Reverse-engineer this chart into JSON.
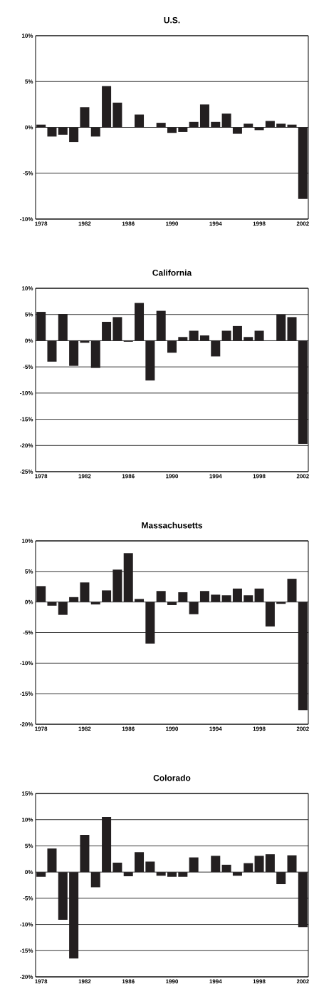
{
  "chart_data": [
    {
      "type": "bar",
      "title": "U.S.",
      "categories": [
        "1978",
        null,
        null,
        null,
        "1982",
        null,
        null,
        null,
        "1986",
        null,
        null,
        null,
        "1990",
        null,
        null,
        null,
        "1994",
        null,
        null,
        null,
        "1998",
        null,
        null,
        null,
        "2002"
      ],
      "values": [
        0.3,
        -1.0,
        -0.8,
        -1.6,
        2.2,
        -1.0,
        4.5,
        2.7,
        0.0,
        1.4,
        0.0,
        0.5,
        -0.6,
        -0.5,
        0.6,
        2.5,
        0.6,
        1.5,
        -0.7,
        0.4,
        -0.3,
        0.7,
        0.4,
        0.3,
        -7.8
      ],
      "color": "#231f20",
      "ylim": [
        -10,
        10
      ],
      "yticks": [
        {
          "value": -10,
          "label": "-10%"
        },
        {
          "value": -5,
          "label": "-5%"
        },
        {
          "value": 0,
          "label": "0%"
        },
        {
          "value": 5,
          "label": "5%"
        },
        {
          "value": 10,
          "label": "10%"
        }
      ],
      "grid": "y"
    },
    {
      "type": "bar",
      "title": "California",
      "categories": [
        "1978",
        null,
        null,
        null,
        "1982",
        null,
        null,
        null,
        "1986",
        null,
        null,
        null,
        "1990",
        null,
        null,
        null,
        "1994",
        null,
        null,
        null,
        "1998",
        null,
        null,
        null,
        "2002"
      ],
      "values": [
        5.5,
        -4.0,
        5.1,
        -4.8,
        -0.4,
        -5.2,
        3.6,
        4.5,
        -0.2,
        7.2,
        -7.6,
        5.7,
        -2.3,
        0.7,
        1.9,
        1.0,
        -3.0,
        1.9,
        2.8,
        0.7,
        1.9,
        0.0,
        5.0,
        4.5,
        -19.7
      ],
      "color": "#231f20",
      "ylim": [
        -25,
        10
      ],
      "yticks": [
        {
          "value": -25,
          "label": "-25%"
        },
        {
          "value": -20,
          "label": "-20%"
        },
        {
          "value": -15,
          "label": "-15%"
        },
        {
          "value": -10,
          "label": "-10%"
        },
        {
          "value": -5,
          "label": "-5%"
        },
        {
          "value": 0,
          "label": "0%"
        },
        {
          "value": 5,
          "label": "5%"
        },
        {
          "value": 10,
          "label": "10%"
        }
      ],
      "grid": "y"
    },
    {
      "type": "bar",
      "title": "Massachusetts",
      "categories": [
        "1978",
        null,
        null,
        null,
        "1982",
        null,
        null,
        null,
        "1986",
        null,
        null,
        null,
        "1990",
        null,
        null,
        null,
        "1994",
        null,
        null,
        null,
        "1998",
        null,
        null,
        null,
        "2002"
      ],
      "values": [
        2.6,
        -0.6,
        -2.1,
        0.8,
        3.2,
        -0.4,
        1.9,
        5.3,
        8.0,
        0.5,
        -6.8,
        1.8,
        -0.5,
        1.6,
        -2.0,
        1.8,
        1.2,
        1.1,
        2.2,
        1.1,
        2.2,
        -4.0,
        -0.3,
        3.8,
        -17.7
      ],
      "color": "#231f20",
      "ylim": [
        -20,
        10
      ],
      "yticks": [
        {
          "value": -20,
          "label": "-20%"
        },
        {
          "value": -15,
          "label": "-15%"
        },
        {
          "value": -10,
          "label": "-10%"
        },
        {
          "value": -5,
          "label": "-5%"
        },
        {
          "value": 0,
          "label": "0%"
        },
        {
          "value": 5,
          "label": "5%"
        },
        {
          "value": 10,
          "label": "10%"
        }
      ],
      "grid": "y"
    },
    {
      "type": "bar",
      "title": "Colorado",
      "categories": [
        "1978",
        null,
        null,
        null,
        "1982",
        null,
        null,
        null,
        "1986",
        null,
        null,
        null,
        "1990",
        null,
        null,
        null,
        "1994",
        null,
        null,
        null,
        "1998",
        null,
        null,
        null,
        "2002"
      ],
      "values": [
        -0.9,
        4.5,
        -9.1,
        -16.5,
        7.1,
        -2.9,
        10.5,
        1.8,
        -0.8,
        3.8,
        2.0,
        -0.7,
        -0.9,
        -0.9,
        2.8,
        0.0,
        3.1,
        1.4,
        -0.7,
        1.7,
        3.1,
        3.4,
        -2.3,
        3.2,
        -10.5
      ],
      "color": "#231f20",
      "ylim": [
        -20,
        15
      ],
      "yticks": [
        {
          "value": -20,
          "label": "-20%"
        },
        {
          "value": -15,
          "label": "-15%"
        },
        {
          "value": -10,
          "label": "-10%"
        },
        {
          "value": -5,
          "label": "-5%"
        },
        {
          "value": 0,
          "label": "0%"
        },
        {
          "value": 5,
          "label": "5%"
        },
        {
          "value": 10,
          "label": "10%"
        },
        {
          "value": 15,
          "label": "15%"
        }
      ],
      "grid": "y"
    }
  ]
}
